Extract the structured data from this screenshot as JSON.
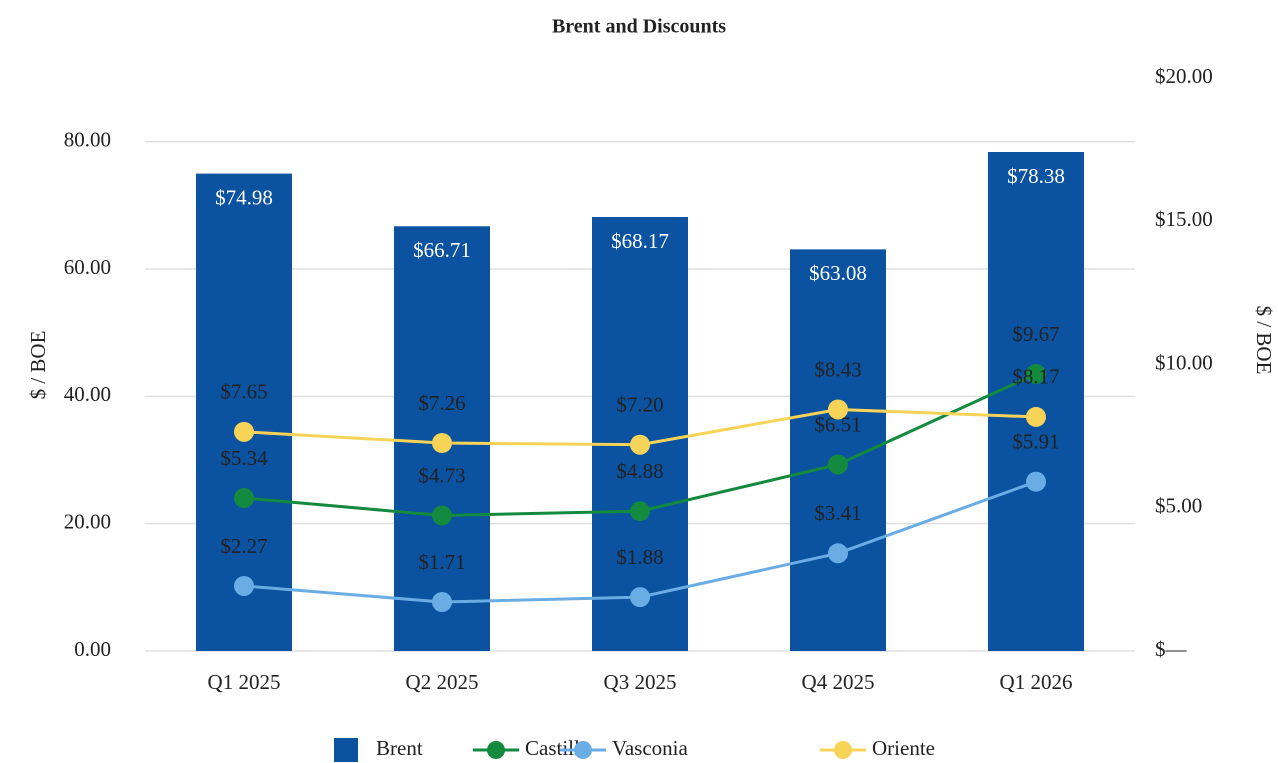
{
  "chart_data": {
    "type": "bar",
    "title": "Brent and Discounts",
    "y_label": "$ / BOE",
    "y2_label": "$ / BOE",
    "categories": [
      "Q1 2025",
      "Q2 2025",
      "Q3 2025",
      "Q4 2025",
      "Q1 2026"
    ],
    "ylim": [
      0,
      90
    ],
    "yticks": [
      {
        "value": 0,
        "label": "0.00"
      },
      {
        "value": 20,
        "label": "20.00"
      },
      {
        "value": 40,
        "label": "40.00"
      },
      {
        "value": 60,
        "label": "60.00"
      },
      {
        "value": 80,
        "label": "80.00"
      }
    ],
    "y2lim": [
      0,
      20
    ],
    "y2ticks": [
      {
        "value": 0,
        "label": "$—"
      },
      {
        "value": 5,
        "label": "$5.00"
      },
      {
        "value": 10,
        "label": "$10.00"
      },
      {
        "value": 15,
        "label": "$15.00"
      },
      {
        "value": 20,
        "label": "$20.00"
      }
    ],
    "grid": true,
    "legend": "bottom",
    "series": [
      {
        "name": "Brent",
        "type": "bar",
        "color": "#0b52a0",
        "values": [
          74.98,
          66.71,
          68.17,
          63.08,
          78.38
        ],
        "value_labels": [
          "$74.98",
          "$66.71",
          "$68.17",
          "$63.08",
          "$78.38"
        ]
      },
      {
        "name": "Castilla",
        "type": "line",
        "axis": "y2",
        "color": "#138a3e",
        "values": [
          5.34,
          4.73,
          4.88,
          6.51,
          9.67
        ],
        "value_labels": [
          "$5.34",
          "$4.73",
          "$4.88",
          "$6.51",
          "$9.67"
        ]
      },
      {
        "name": "Vasconia",
        "type": "line",
        "axis": "y2",
        "color": "#6aade4",
        "values": [
          2.27,
          1.71,
          1.88,
          3.41,
          5.91
        ],
        "value_labels": [
          "$2.27",
          "$1.71",
          "$1.88",
          "$3.41",
          "$5.91"
        ]
      },
      {
        "name": "Oriente",
        "type": "line",
        "axis": "y2",
        "color": "#f7d358",
        "values": [
          7.65,
          7.26,
          7.2,
          8.43,
          8.17
        ],
        "value_labels": [
          "$7.65",
          "$7.26",
          "$7.20",
          "$8.43",
          "$8.17"
        ]
      }
    ]
  }
}
